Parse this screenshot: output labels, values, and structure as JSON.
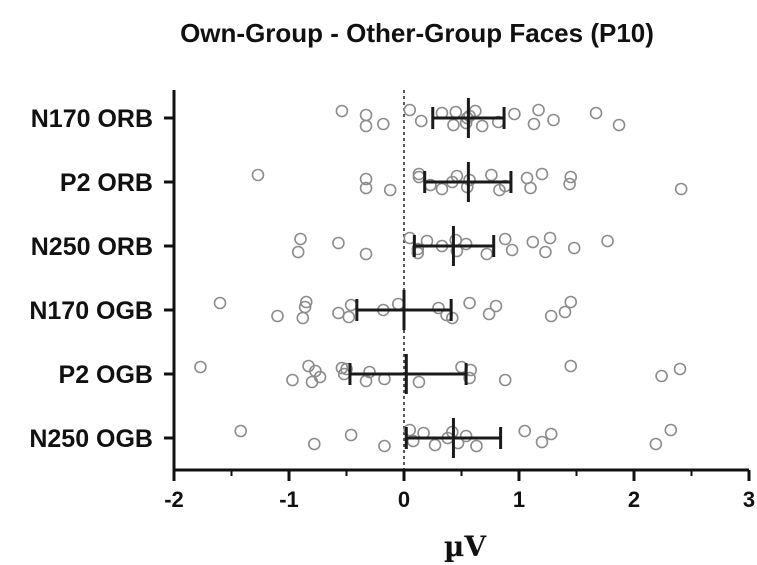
{
  "chart_data": {
    "type": "scatter",
    "title": "Own-Group - Other-Group Faces (P10)",
    "xlabel": "µV",
    "ylabel": "",
    "xlim": [
      -2,
      3
    ],
    "xticks": [
      -2,
      -1,
      0,
      1,
      2,
      3
    ],
    "xtick_labels": [
      "-2",
      "-1",
      "0",
      "1",
      "2",
      "3"
    ],
    "reference_line": 0,
    "categories": [
      "N170 ORB",
      "P2 ORB",
      "N250 ORB",
      "N170 OGB",
      "P2 OGB",
      "N250 OGB"
    ],
    "series": [
      {
        "values": [
          [
            -0.54,
            -0.18,
            -0.33,
            -0.33,
            0.05,
            0.15,
            0.33,
            0.43,
            0.55,
            0.45,
            0.54,
            0.57,
            0.68,
            0.62,
            0.82,
            0.96,
            1.13,
            1.17,
            1.3,
            1.67,
            1.87
          ],
          [
            -1.27,
            -0.33,
            -0.33,
            -0.12,
            0.13,
            0.23,
            0.13,
            0.33,
            0.42,
            0.46,
            0.55,
            0.57,
            0.83,
            0.76,
            0.88,
            1.07,
            1.1,
            1.2,
            1.44,
            1.45,
            2.41
          ],
          [
            -0.9,
            -0.92,
            -0.57,
            -0.33,
            0.05,
            0.12,
            0.2,
            0.12,
            0.33,
            0.45,
            0.46,
            0.54,
            0.72,
            0.88,
            0.94,
            1.12,
            1.23,
            1.27,
            1.48,
            1.77
          ],
          [
            -1.6,
            -1.1,
            -0.86,
            -0.88,
            -0.85,
            -0.57,
            -0.46,
            -0.48,
            -0.18,
            -0.05,
            0.37,
            0.3,
            0.42,
            0.57,
            0.74,
            0.8,
            1.28,
            1.45,
            1.4
          ],
          [
            -1.77,
            -0.97,
            -0.77,
            -0.8,
            -0.83,
            -0.73,
            -0.5,
            -0.33,
            -0.52,
            -0.54,
            -0.17,
            -0.3,
            0.13,
            0.5,
            0.57,
            0.58,
            0.88,
            1.45,
            2.24,
            2.4
          ],
          [
            -1.42,
            -0.78,
            -0.46,
            -0.17,
            0.05,
            0.08,
            0.17,
            0.27,
            0.38,
            0.42,
            0.47,
            0.54,
            0.63,
            1.05,
            1.2,
            1.28,
            2.19,
            2.32
          ]
        ],
        "mean": [
          0.56,
          0.56,
          0.43,
          0.0,
          0.02,
          0.43
        ],
        "ci_low": [
          0.25,
          0.18,
          0.09,
          -0.41,
          -0.47,
          0.02
        ],
        "ci_high": [
          0.87,
          0.93,
          0.78,
          0.41,
          0.54,
          0.84
        ]
      }
    ],
    "legend": "none",
    "grid": false,
    "point_color": "#8c8c8c",
    "errorbar_color": "#1a1a1a"
  }
}
